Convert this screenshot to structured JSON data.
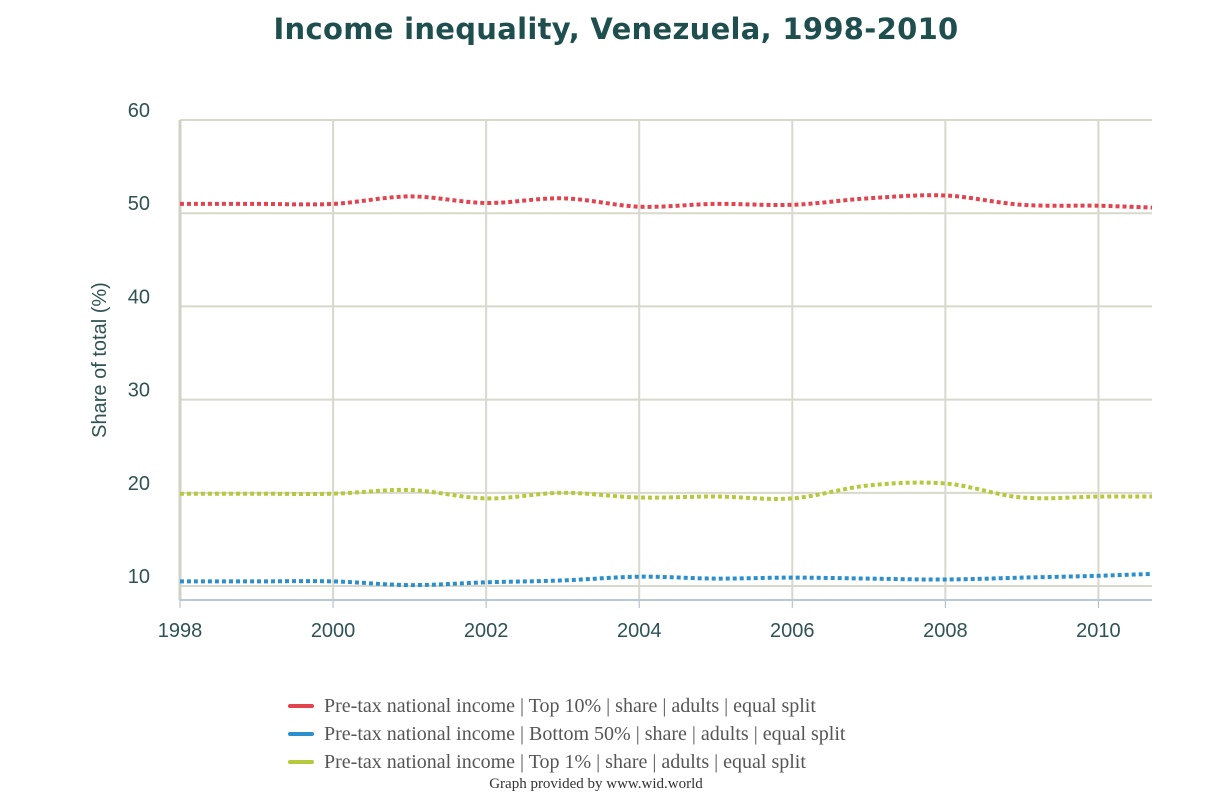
{
  "chart_data": {
    "type": "line",
    "title": "Income inequality, Venezuela, 1998-2010",
    "xlabel": "",
    "ylabel": "Share of total (%)",
    "x": [
      1998,
      1999,
      2000,
      2001,
      2002,
      2003,
      2004,
      2005,
      2006,
      2007,
      2008,
      2009,
      2010
    ],
    "xlim": [
      1998,
      2010.7
    ],
    "ylim": [
      8.5,
      60
    ],
    "xticks": [
      "1998",
      "2000",
      "2002",
      "2004",
      "2006",
      "2008",
      "2010"
    ],
    "yticks": [
      "10",
      "20",
      "30",
      "40",
      "50",
      "60"
    ],
    "grid": true,
    "line_style": "dotted",
    "legend_position": "bottom",
    "series": [
      {
        "name": "Pre-tax national income | Top 10% | share | adults | equal split",
        "color": "#e1444f",
        "values": [
          51.0,
          51.0,
          51.0,
          51.8,
          51.1,
          51.6,
          50.7,
          51.0,
          50.9,
          51.6,
          51.9,
          50.9,
          50.8
        ],
        "last": {
          "x": 2010.7,
          "y": 50.6
        }
      },
      {
        "name": "Pre-tax national income | Bottom 50% | share | adults | equal split",
        "color": "#2b8fcc",
        "values": [
          10.5,
          10.5,
          10.5,
          10.1,
          10.4,
          10.6,
          11.0,
          10.8,
          10.9,
          10.8,
          10.7,
          10.9,
          11.1
        ],
        "last": {
          "x": 2010.7,
          "y": 11.3
        }
      },
      {
        "name": "Pre-tax national income | Top 1% | share | adults | equal split",
        "color": "#b5c93c",
        "values": [
          19.9,
          19.9,
          19.9,
          20.3,
          19.4,
          20.0,
          19.5,
          19.6,
          19.4,
          20.8,
          21.0,
          19.5,
          19.6
        ],
        "last": {
          "x": 2010.7,
          "y": 19.6
        }
      }
    ]
  },
  "credit": "Graph provided by www.wid.world"
}
